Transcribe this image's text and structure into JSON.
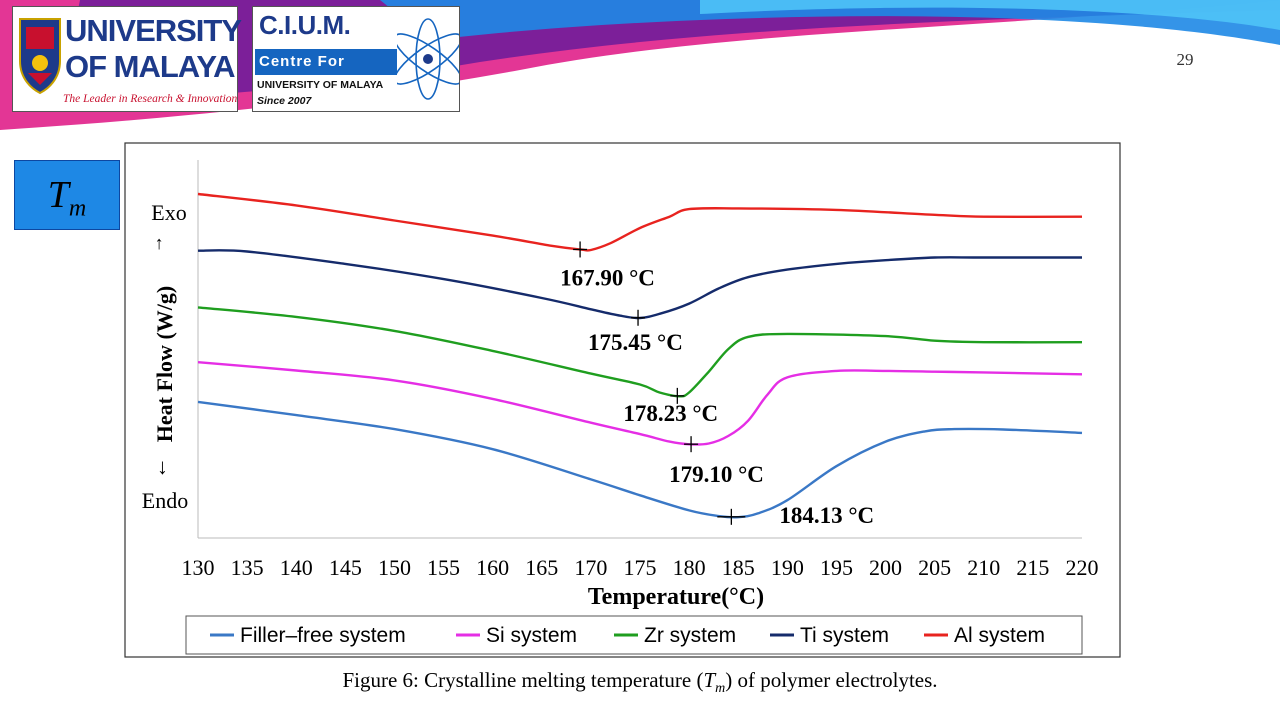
{
  "slide": {
    "number": "29",
    "tm_box": {
      "symbol": "T",
      "subscript": "m"
    },
    "caption": {
      "prefix": "Figure 6: Crystalline melting temperature (",
      "symbol": "T",
      "subscript": "m",
      "suffix": ") of polymer electrolytes."
    }
  },
  "logos": {
    "um": {
      "line1": "UNIVERSITY",
      "line2": "OF MALAYA",
      "tagline": "The Leader in Research & Innovation",
      "color": "#1d3a8a",
      "accent": "#c8102e"
    },
    "cium": {
      "title": "C.I.U.M.",
      "bar_text": "Centre For Ionics",
      "sub1": "UNIVERSITY OF MALAYA",
      "sub2": "Since 2007",
      "color": "#1d3a8a",
      "bar_color": "#1565c0"
    }
  },
  "chart_data": {
    "type": "line",
    "title": "",
    "xlabel": "Temperature(°C)",
    "ylabel": "Heat Flow (W/g)",
    "ylabel_arrow_down": "←",
    "ylabel_arrow_up": "→",
    "y_top_label": "Exo",
    "y_bottom_label": "Endo",
    "xlim": [
      130,
      220
    ],
    "ylim": [
      0,
      100
    ],
    "xticks": [
      130,
      135,
      140,
      145,
      150,
      155,
      160,
      165,
      170,
      175,
      180,
      185,
      190,
      195,
      200,
      205,
      210,
      215,
      220
    ],
    "y_tick_labels": false,
    "grid": false,
    "legend_position": "bottom",
    "series": [
      {
        "name": "Al system",
        "color": "#e8231f",
        "points": [
          [
            130,
            91
          ],
          [
            140,
            88
          ],
          [
            150,
            84
          ],
          [
            160,
            80
          ],
          [
            166,
            77.3
          ],
          [
            169,
            76.3
          ],
          [
            170,
            76.2
          ],
          [
            172,
            78
          ],
          [
            175,
            82
          ],
          [
            178,
            85
          ],
          [
            180,
            87
          ],
          [
            185,
            87.2
          ],
          [
            195,
            86.8
          ],
          [
            205,
            85.5
          ],
          [
            210,
            85
          ],
          [
            220,
            85
          ]
        ],
        "marker_x": 168.9,
        "marker_label": "167.90 °C"
      },
      {
        "name": "Ti system",
        "color": "#152b6b",
        "points": [
          [
            130,
            76
          ],
          [
            135,
            75.8
          ],
          [
            145,
            72.5
          ],
          [
            155,
            68.5
          ],
          [
            165,
            63.5
          ],
          [
            170,
            60.5
          ],
          [
            173,
            58.8
          ],
          [
            175,
            58.2
          ],
          [
            177,
            59.3
          ],
          [
            180,
            62
          ],
          [
            183,
            66
          ],
          [
            186,
            69
          ],
          [
            190,
            71
          ],
          [
            195,
            72.5
          ],
          [
            200,
            73.5
          ],
          [
            205,
            74.2
          ],
          [
            210,
            74.2
          ],
          [
            220,
            74.2
          ]
        ],
        "marker_x": 174.8,
        "marker_label": "175.45 °C"
      },
      {
        "name": "Zr system",
        "color": "#1f9e1f",
        "points": [
          [
            130,
            61
          ],
          [
            140,
            58.5
          ],
          [
            150,
            54.8
          ],
          [
            160,
            49.5
          ],
          [
            170,
            43.5
          ],
          [
            175,
            40.6
          ],
          [
            177,
            38.5
          ],
          [
            179,
            37.5
          ],
          [
            180,
            38.5
          ],
          [
            182,
            44
          ],
          [
            184,
            50
          ],
          [
            186,
            53.2
          ],
          [
            190,
            54
          ],
          [
            200,
            53.4
          ],
          [
            205,
            52.2
          ],
          [
            210,
            51.8
          ],
          [
            220,
            51.8
          ]
        ],
        "marker_x": 178.8,
        "marker_label": "178.23 °C"
      },
      {
        "name": "Si system",
        "color": "#e52ee5",
        "points": [
          [
            130,
            46.5
          ],
          [
            140,
            44.3
          ],
          [
            150,
            41.7
          ],
          [
            160,
            36.8
          ],
          [
            170,
            30.5
          ],
          [
            175,
            27.5
          ],
          [
            178,
            25.5
          ],
          [
            180,
            24.8
          ],
          [
            182,
            25
          ],
          [
            184,
            27
          ],
          [
            186,
            31
          ],
          [
            188,
            38
          ],
          [
            190,
            42.5
          ],
          [
            195,
            44.2
          ],
          [
            200,
            44.2
          ],
          [
            205,
            44
          ],
          [
            210,
            43.8
          ],
          [
            220,
            43.3
          ]
        ],
        "marker_x": 180.2,
        "marker_label": "179.10 °C"
      },
      {
        "name": "Filler–free system",
        "color": "#3a78c6",
        "points": [
          [
            130,
            36
          ],
          [
            140,
            32.5
          ],
          [
            150,
            28.8
          ],
          [
            160,
            23.5
          ],
          [
            170,
            15.5
          ],
          [
            175,
            11.3
          ],
          [
            180,
            7.3
          ],
          [
            183,
            5.8
          ],
          [
            185,
            5.5
          ],
          [
            187,
            6.5
          ],
          [
            190,
            10
          ],
          [
            195,
            19
          ],
          [
            200,
            25.5
          ],
          [
            204,
            28.2
          ],
          [
            207,
            28.8
          ],
          [
            212,
            28.7
          ],
          [
            220,
            27.8
          ]
        ],
        "marker_x": 184.3,
        "marker_label": "184.13 °C"
      }
    ],
    "legend_order": [
      "Filler–free system",
      "Si system",
      "Zr system",
      "Ti system",
      "Al system"
    ]
  }
}
